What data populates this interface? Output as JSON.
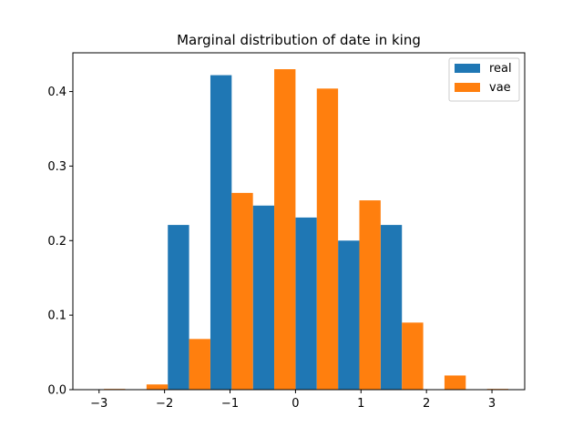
{
  "chart_data": {
    "type": "bar",
    "title": "Marginal distribution of date in king",
    "xlabel": "",
    "ylabel": "",
    "xlim": [
      -3.4,
      3.5
    ],
    "ylim": [
      0,
      0.452
    ],
    "x_ticks": [
      -3,
      -2,
      -1,
      0,
      1,
      2,
      3
    ],
    "x_tick_labels": [
      "−3",
      "−2",
      "−1",
      "0",
      "1",
      "2",
      "3"
    ],
    "y_ticks": [
      0.0,
      0.1,
      0.2,
      0.3,
      0.4
    ],
    "y_tick_labels": [
      "0.0",
      "0.1",
      "0.2",
      "0.3",
      "0.4"
    ],
    "bin_edges": [
      -3.25,
      -2.6,
      -1.95,
      -1.3,
      -0.65,
      0.0,
      0.65,
      1.3,
      1.95,
      2.6,
      3.25
    ],
    "legend_position": "upper right",
    "grid": false,
    "series": [
      {
        "name": "real",
        "color": "#1f77b4",
        "values": [
          0,
          0,
          0.221,
          0.422,
          0.247,
          0.231,
          0.2,
          0.221,
          0,
          0
        ]
      },
      {
        "name": "vae",
        "color": "#ff7f0e",
        "values": [
          0.001,
          0.007,
          0.068,
          0.264,
          0.43,
          0.404,
          0.254,
          0.09,
          0.019,
          0.001
        ]
      }
    ]
  }
}
